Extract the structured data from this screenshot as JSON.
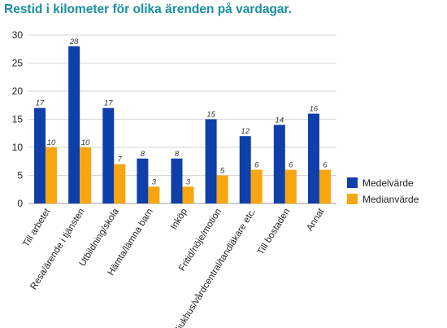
{
  "chart_data": {
    "type": "bar",
    "title": "Restid i kilometer för olika ärenden på vardagar.",
    "xlabel": "",
    "ylabel": "",
    "ylim": [
      0,
      30
    ],
    "yticks": [
      0,
      5,
      10,
      15,
      20,
      25,
      30
    ],
    "grid": true,
    "legend_position": "right",
    "categories": [
      "Till arbetet",
      "Resa/ärende i tjänsten",
      "Utbildning/skola",
      "Hämta/lämna barn",
      "Inköp",
      "Fritid/nöje/motion",
      "Sjukhus/vårdcentral/tandläkare etc.",
      "Till bostaden",
      "Annat"
    ],
    "series": [
      {
        "name": "Medelvärde",
        "color": "#0f3fa8",
        "values": [
          17,
          28,
          17,
          8,
          8,
          15,
          12,
          14,
          16
        ]
      },
      {
        "name": "Medianvärde",
        "color": "#f7a60f",
        "values": [
          10,
          10,
          7,
          3,
          3,
          5,
          6,
          6,
          6
        ]
      }
    ]
  }
}
